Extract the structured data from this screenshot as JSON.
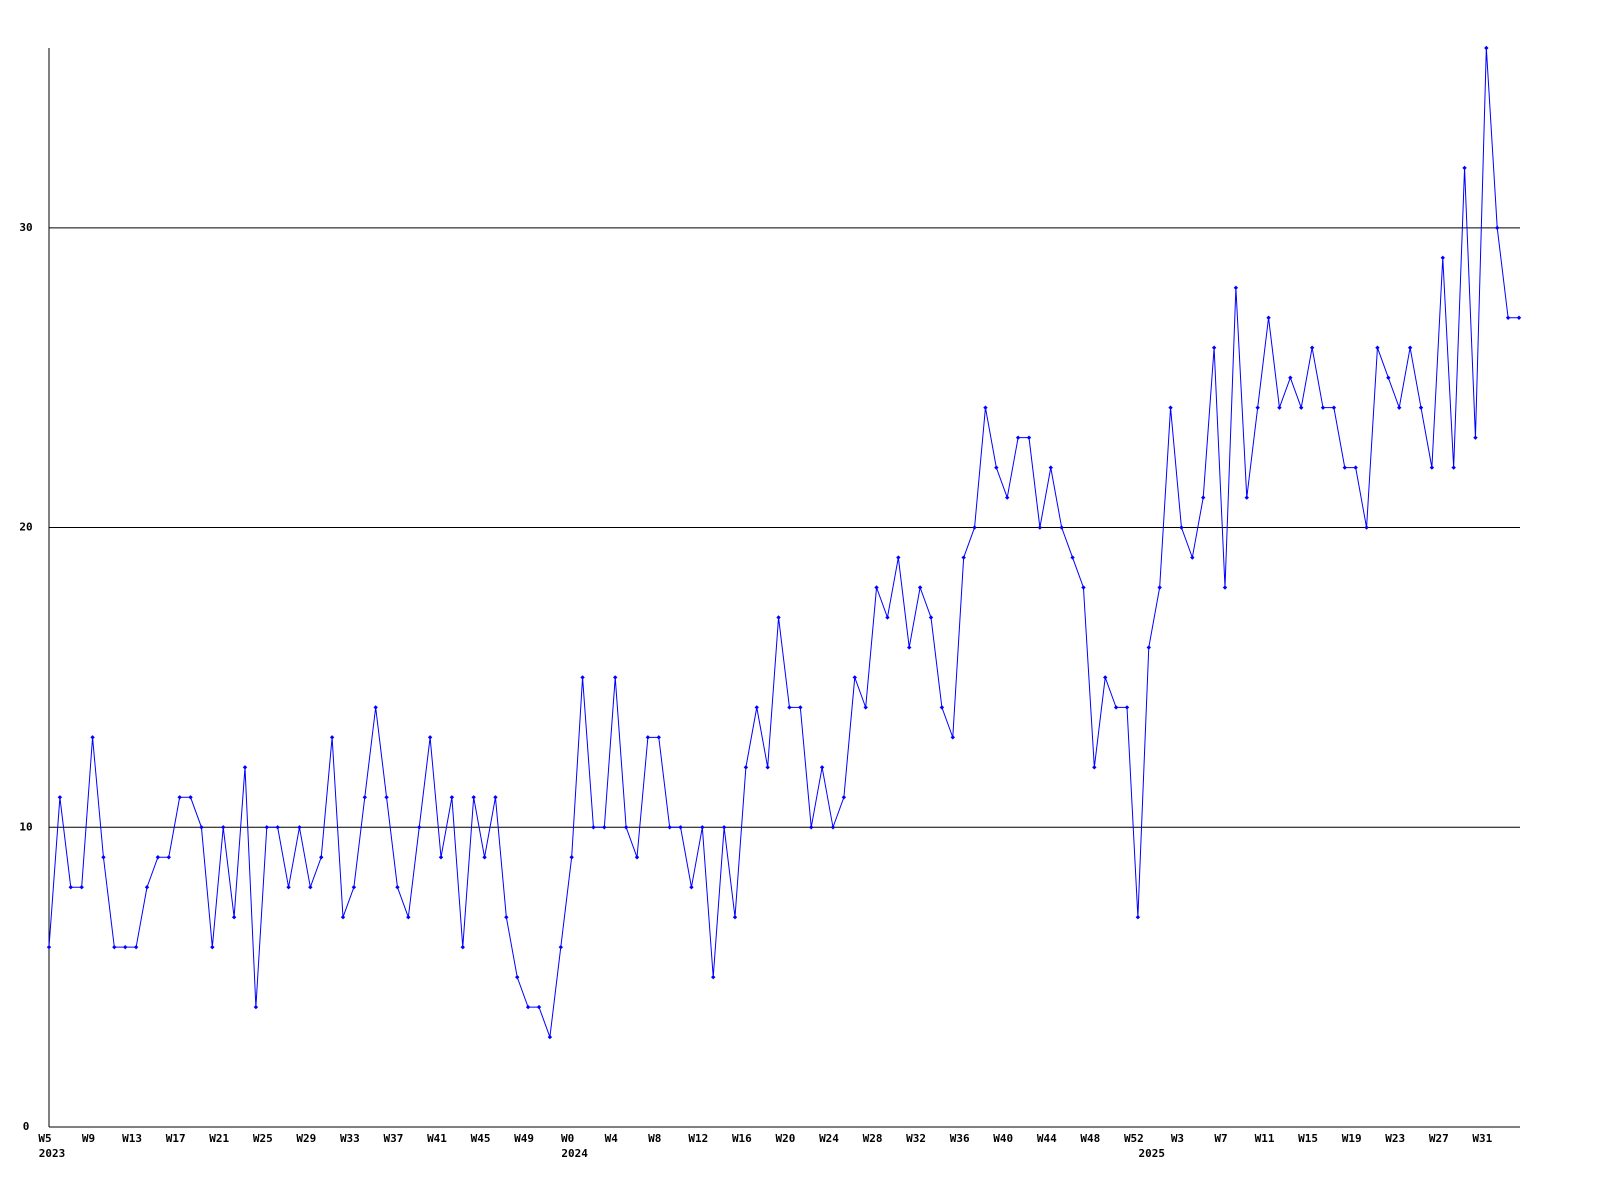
{
  "chart_data": {
    "type": "line",
    "categories": [
      "W5",
      null,
      null,
      null,
      "W9",
      null,
      null,
      null,
      "W13",
      null,
      null,
      null,
      "W17",
      null,
      null,
      null,
      "W21",
      null,
      null,
      null,
      "W25",
      null,
      null,
      null,
      "W29",
      null,
      null,
      null,
      "W33",
      null,
      null,
      null,
      "W37",
      null,
      null,
      null,
      "W41",
      null,
      null,
      null,
      "W45",
      null,
      null,
      null,
      "W49",
      null,
      null,
      null,
      "W0",
      null,
      null,
      null,
      "W4",
      null,
      null,
      null,
      "W8",
      null,
      null,
      null,
      "W12",
      null,
      null,
      null,
      "W16",
      null,
      null,
      null,
      "W20",
      null,
      null,
      null,
      "W24",
      null,
      null,
      null,
      "W28",
      null,
      null,
      null,
      "W32",
      null,
      null,
      null,
      "W36",
      null,
      null,
      null,
      "W40",
      null,
      null,
      null,
      "W44",
      null,
      null,
      null,
      "W48",
      null,
      null,
      null,
      "W52",
      null,
      null,
      null,
      "W3",
      null,
      null,
      null,
      "W7",
      null,
      null,
      null,
      "W11",
      null,
      null,
      null,
      "W15",
      null,
      null,
      null,
      "W19",
      null,
      null,
      null,
      "W23",
      null,
      null,
      null,
      "W27",
      null,
      null,
      null,
      "W31",
      null,
      null,
      null
    ],
    "year_labels": [
      "2023",
      null,
      null,
      null,
      null,
      null,
      null,
      null,
      null,
      null,
      null,
      null,
      null,
      null,
      null,
      null,
      null,
      null,
      null,
      null,
      null,
      null,
      null,
      null,
      null,
      null,
      null,
      null,
      null,
      null,
      null,
      null,
      null,
      null,
      null,
      null,
      null,
      null,
      null,
      null,
      null,
      null,
      null,
      null,
      null,
      null,
      null,
      null,
      "2024",
      null,
      null,
      null,
      null,
      null,
      null,
      null,
      null,
      null,
      null,
      null,
      null,
      null,
      null,
      null,
      null,
      null,
      null,
      null,
      null,
      null,
      null,
      null,
      null,
      null,
      null,
      null,
      null,
      null,
      null,
      null,
      null,
      null,
      null,
      null,
      null,
      null,
      null,
      null,
      null,
      null,
      null,
      null,
      null,
      null,
      null,
      null,
      null,
      null,
      null,
      null,
      null,
      "2025",
      null,
      null,
      null,
      null,
      null,
      null,
      null,
      null,
      null,
      null,
      null,
      null,
      null,
      null,
      null,
      null,
      null,
      null,
      null,
      null,
      null,
      null,
      null,
      null,
      null,
      null,
      null,
      null,
      null,
      null,
      null,
      null,
      null,
      null
    ],
    "series": [
      {
        "color": "#0000ff",
        "values": [
          6,
          11,
          8,
          8,
          13,
          9,
          6,
          6,
          6,
          8,
          9,
          9,
          11,
          11,
          10,
          6,
          10,
          7,
          12,
          4,
          10,
          10,
          8,
          10,
          8,
          9,
          13,
          7,
          8,
          11,
          14,
          11,
          8,
          7,
          10,
          13,
          9,
          11,
          6,
          11,
          9,
          11,
          7,
          5,
          4,
          4,
          3,
          6,
          9,
          15,
          10,
          10,
          15,
          10,
          9,
          13,
          13,
          10,
          10,
          8,
          10,
          5,
          10,
          7,
          12,
          14,
          12,
          17,
          14,
          14,
          10,
          12,
          10,
          11,
          15,
          14,
          18,
          17,
          19,
          16,
          18,
          17,
          14,
          13,
          19,
          20,
          24,
          22,
          21,
          23,
          23,
          20,
          22,
          20,
          19,
          18,
          12,
          15,
          14,
          14,
          7,
          16,
          18,
          24,
          20,
          19,
          21,
          26,
          18,
          28,
          21,
          24,
          27,
          24,
          25,
          24,
          26,
          24,
          24,
          22,
          22,
          20,
          26,
          25,
          24,
          26,
          24,
          22,
          29,
          22,
          32,
          23,
          36,
          30,
          27,
          27
        ]
      }
    ],
    "ylim": [
      0,
      36
    ],
    "yticks": [
      0,
      10,
      20,
      30
    ],
    "grid": true
  }
}
